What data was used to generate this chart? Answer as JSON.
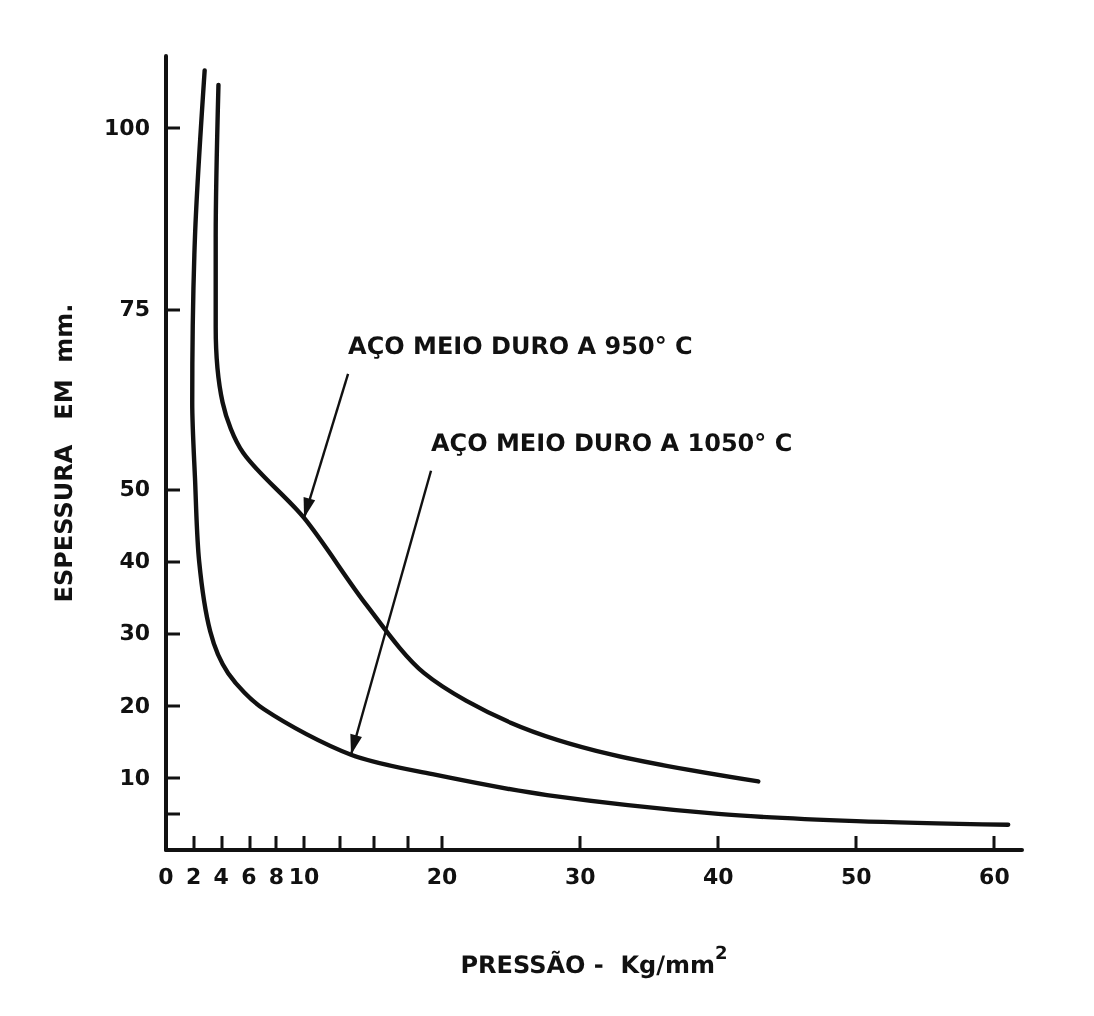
{
  "chart_data": {
    "type": "line",
    "xlabel": "PRESSÃO -  Kg/mm$^{2}$",
    "ylabel": "ESPESSURA   EM  mm.",
    "x": [
      2.8,
      2.1,
      1.9,
      2.1,
      2.4,
      3.2,
      4.5,
      7.1,
      13.4,
      19.3,
      27.6,
      40,
      50,
      61
    ],
    "series": [
      {
        "color": "#111111",
        "x": [
          3.8,
          3.6,
          3.6,
          4.1,
          5.6,
          10,
          14.5,
          18.7,
          25,
          32.3,
          42.9
        ],
        "values": [
          106,
          85,
          72.5,
          62,
          55,
          46,
          34,
          24.5,
          17.6,
          13.2,
          9.5
        ]
      },
      {
        "color": "#111111",
        "values": [
          108,
          85,
          62,
          51.5,
          40,
          30.3,
          24.5,
          19.5,
          13.2,
          10.5,
          7.6,
          5,
          4,
          3.5
        ]
      }
    ],
    "xlim": [
      0,
      62
    ],
    "ylim": [
      0,
      110
    ],
    "xticks": [
      0,
      2,
      4,
      6,
      8,
      10,
      {
        "value": 12.5,
        "label": null
      },
      {
        "value": 15,
        "label": null
      },
      {
        "value": 17.5,
        "label": null
      },
      20,
      30,
      40,
      50,
      60
    ],
    "yticks": [
      {
        "value": 5,
        "label": null
      },
      10,
      20,
      30,
      40,
      50,
      75,
      100
    ],
    "annotations": [
      {
        "text": "AÇO MEIO DURO A 950° C",
        "x": 10,
        "y": 46
      },
      {
        "text": "AÇO MEIO DURO A 1050° C",
        "x": 13.4,
        "y": 13.2
      }
    ],
    "grid": false,
    "marker": "none",
    "line_style": "solid"
  }
}
